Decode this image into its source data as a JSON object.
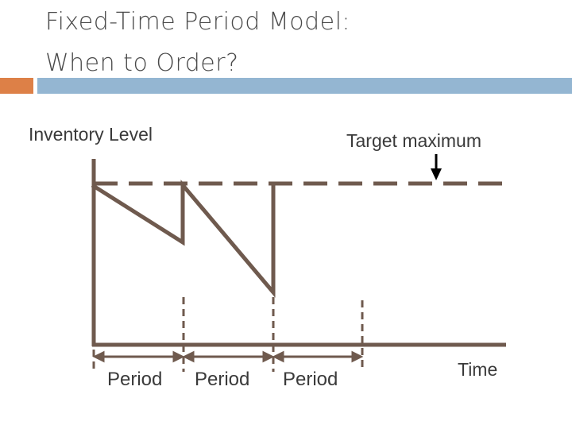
{
  "title": {
    "line1": "Fixed-Time Period Model:",
    "line2": "When to Order?"
  },
  "colors": {
    "accent_bar": "#dd8047",
    "header_bar": "#94b6d2",
    "diagram_line": "#6f5a4e",
    "text": "#3a3a3a"
  },
  "diagram": {
    "y_axis_label": "Inventory Level",
    "target_label": "Target maximum",
    "x_axis_label": "Time",
    "period_labels": [
      "Period",
      "Period",
      "Period"
    ]
  }
}
